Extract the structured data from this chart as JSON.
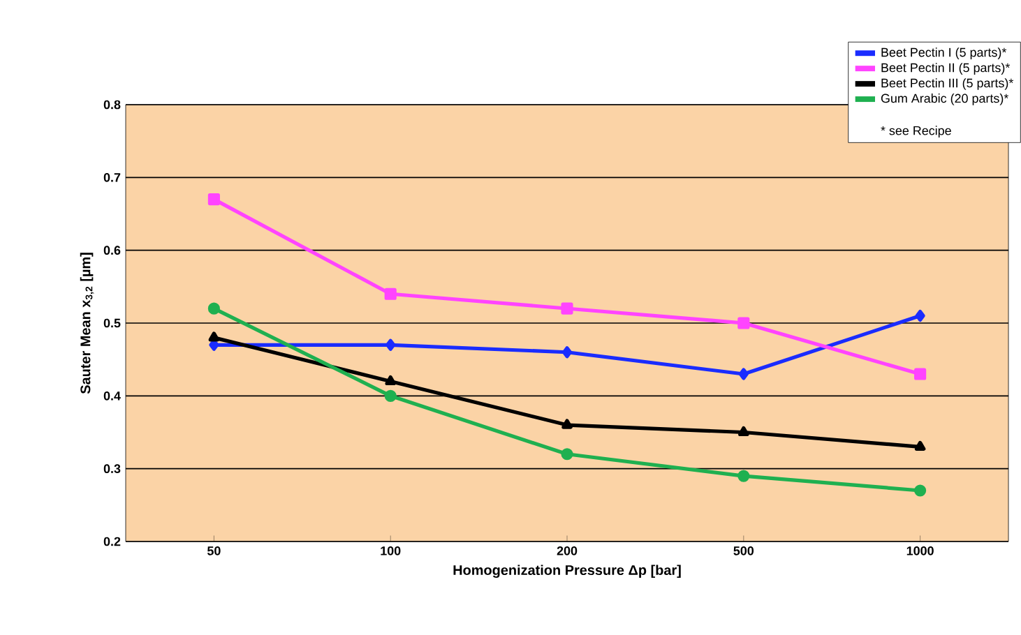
{
  "chart_data": {
    "type": "line",
    "xlabel": "Homogenization Pressure Δp [bar]",
    "ylabel": "Sauter Mean x$_{3,2}$ [µm]",
    "categories": [
      "50",
      "100",
      "200",
      "500",
      "1000"
    ],
    "ylim": [
      0.2,
      0.8
    ],
    "yticks": [
      0.2,
      0.3,
      0.4,
      0.5,
      0.6,
      0.7,
      0.8
    ],
    "grid": "y",
    "legend": "top right",
    "line_style": "solid",
    "annotations": [
      "* see Recipe"
    ],
    "series": [
      {
        "name": "Beet Pectin I (5 parts)*",
        "color": "#1a2cff",
        "marker": "diamond",
        "values": [
          0.47,
          0.47,
          0.46,
          0.43,
          0.51
        ]
      },
      {
        "name": "Beet Pectin II (5 parts)*",
        "color": "#ff44ff",
        "marker": "square",
        "values": [
          0.67,
          0.54,
          0.52,
          0.5,
          0.43
        ]
      },
      {
        "name": "Beet Pectin III (5 parts)*",
        "color": "#000000",
        "marker": "triangle",
        "values": [
          0.48,
          0.42,
          0.36,
          0.35,
          0.33
        ]
      },
      {
        "name": "Gum Arabic (20 parts)*",
        "color": "#1fb050",
        "marker": "circle",
        "values": [
          0.52,
          0.4,
          0.32,
          0.29,
          0.27
        ]
      }
    ]
  }
}
